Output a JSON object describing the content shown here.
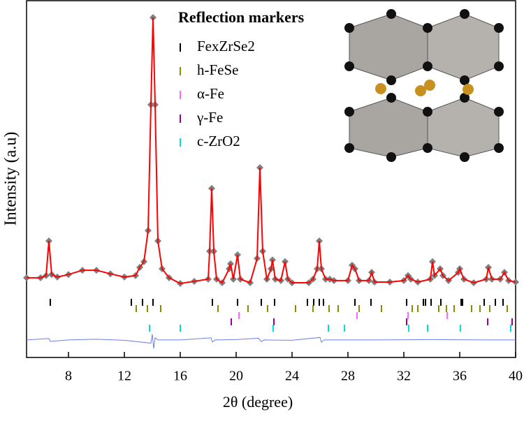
{
  "chart_data": {
    "type": "line",
    "xlabel": "2θ (degree)",
    "ylabel": "Intensity (a.u)",
    "xlim": [
      5,
      40
    ],
    "xticks": [
      8,
      12,
      16,
      20,
      24,
      28,
      32,
      36,
      40
    ],
    "ylim": [
      0,
      100
    ],
    "series": [
      {
        "style": "diamond",
        "color": "#7f7f7f",
        "x": [
          5,
          6,
          6.4,
          6.6,
          6.8,
          7.2,
          8,
          9,
          10,
          11,
          12,
          12.8,
          13.1,
          13.4,
          13.7,
          13.9,
          14.05,
          14.2,
          14.4,
          14.7,
          15.2,
          16,
          17,
          18,
          18.1,
          18.25,
          18.4,
          18.6,
          19,
          19.5,
          19.6,
          19.8,
          20.1,
          20.3,
          21,
          21.5,
          21.7,
          21.9,
          22.2,
          22.5,
          22.6,
          22.8,
          23.2,
          23.5,
          23.7,
          24,
          25.2,
          25.5,
          25.8,
          25.95,
          26.1,
          26.4,
          26.7,
          27,
          28,
          28.3,
          28.5,
          28.8,
          29.5,
          29.7,
          29.9,
          31,
          32,
          32.3,
          32.5,
          33,
          33.9,
          34.05,
          34.2,
          34.6,
          34.8,
          35.2,
          35.9,
          36,
          36.3,
          37,
          37.9,
          38.05,
          38.3,
          38.9,
          39.2,
          39.5,
          40
        ],
        "values": [
          22.3,
          22.3,
          22.9,
          32.6,
          23.2,
          22.5,
          23.2,
          24.4,
          24.4,
          23.4,
          22.5,
          22.9,
          25.2,
          26.8,
          35.5,
          70.7,
          95.1,
          70.7,
          32.6,
          24.8,
          22.3,
          20.7,
          21.3,
          21.9,
          29.7,
          47.3,
          29.7,
          21.9,
          20.9,
          24.8,
          26.2,
          21.9,
          28.7,
          21.9,
          20.9,
          27.7,
          53.1,
          29.7,
          21.9,
          24.8,
          27.3,
          21.9,
          21.5,
          26.8,
          21.9,
          20.9,
          20.9,
          21.9,
          24.8,
          32.6,
          24.8,
          21.9,
          21.9,
          21.5,
          21.5,
          25.8,
          24.8,
          21.5,
          21.5,
          23.8,
          21.1,
          21.1,
          21.5,
          22.9,
          21.9,
          21.1,
          21.9,
          26.8,
          22.9,
          24.8,
          22.9,
          21.5,
          23.8,
          24.8,
          21.9,
          20.9,
          21.9,
          25.2,
          21.9,
          21.9,
          23.8,
          21.5,
          21.1
        ]
      },
      {
        "style": "line",
        "color": "#ff0000",
        "x": [
          5,
          6,
          6.4,
          6.6,
          6.8,
          7.2,
          8,
          9,
          10,
          11,
          12,
          12.8,
          13.1,
          13.4,
          13.7,
          13.9,
          14.05,
          14.2,
          14.4,
          14.7,
          15.2,
          16,
          17,
          18,
          18.1,
          18.25,
          18.4,
          18.6,
          19,
          19.5,
          19.6,
          19.8,
          20.1,
          20.3,
          21,
          21.5,
          21.7,
          21.9,
          22.2,
          22.5,
          22.6,
          22.8,
          23.2,
          23.5,
          23.7,
          24,
          25.2,
          25.5,
          25.8,
          25.95,
          26.1,
          26.4,
          26.7,
          27,
          28,
          28.3,
          28.5,
          28.8,
          29.5,
          29.7,
          29.9,
          31,
          32,
          32.3,
          32.5,
          33,
          33.9,
          34.05,
          34.2,
          34.6,
          34.8,
          35.2,
          35.9,
          36,
          36.3,
          37,
          37.9,
          38.05,
          38.3,
          38.9,
          39.2,
          39.5,
          40
        ],
        "values": [
          22.3,
          22.3,
          22.9,
          32.6,
          23.2,
          22.5,
          23.2,
          24.4,
          24.4,
          23.4,
          22.5,
          22.9,
          25.2,
          26.8,
          35.5,
          70.7,
          95.1,
          70.7,
          32.6,
          24.8,
          22.3,
          20.7,
          21.3,
          21.9,
          29.7,
          47.3,
          29.7,
          21.9,
          20.9,
          24.8,
          26.2,
          21.9,
          28.7,
          21.9,
          20.9,
          27.7,
          53.1,
          29.7,
          21.9,
          24.8,
          27.3,
          21.9,
          21.5,
          26.8,
          21.9,
          20.9,
          20.9,
          21.9,
          24.8,
          32.6,
          24.8,
          21.9,
          21.9,
          21.5,
          21.5,
          25.8,
          24.8,
          21.5,
          21.5,
          23.8,
          21.1,
          21.1,
          21.5,
          22.9,
          21.9,
          21.1,
          21.9,
          26.8,
          22.9,
          24.8,
          22.9,
          21.5,
          23.8,
          24.8,
          21.9,
          20.9,
          21.9,
          25.2,
          21.9,
          21.9,
          23.8,
          21.5,
          21.1
        ]
      },
      {
        "style": "line",
        "color": "#6b7fe8",
        "x": [
          5,
          6.6,
          6.7,
          8,
          10,
          12,
          13.9,
          14,
          14.1,
          14.2,
          14.4,
          16,
          18.2,
          18.3,
          18.5,
          20,
          21.6,
          21.8,
          22,
          24,
          26,
          26.1,
          26.3,
          30,
          34,
          38,
          40
        ],
        "values": [
          4.9,
          5.3,
          4.5,
          4.9,
          5.1,
          4.8,
          4.0,
          6.5,
          2.5,
          5.5,
          4.9,
          4.9,
          5.5,
          4.3,
          4.9,
          5.0,
          5.4,
          4.4,
          4.9,
          4.8,
          5.6,
          4.3,
          4.9,
          4.9,
          5.0,
          4.9,
          4.9
        ]
      }
    ],
    "legend_title": "Reflection markers",
    "markers": [
      {
        "name": "FexZrSe2",
        "color": "#000000",
        "positions": [
          6.7,
          12.5,
          13.3,
          14.05,
          18.3,
          20.1,
          21.8,
          22.75,
          25.1,
          25.55,
          25.95,
          26.25,
          28.5,
          29.65,
          32.2,
          33.4,
          33.55,
          33.95,
          34.65,
          36.1,
          36.2,
          37.75,
          38.55,
          39.1
        ]
      },
      {
        "name": "h-FeSe",
        "color": "#8c8c00",
        "positions": [
          12.85,
          13.65,
          14.6,
          18.7,
          20.85,
          22.25,
          24.25,
          25.5,
          26.65,
          27.3,
          28.8,
          30.4,
          32.6,
          33,
          34.5,
          35.05,
          35.6,
          36.85,
          37.45,
          38.15,
          39.4
        ]
      },
      {
        "name": "α-Fe",
        "color": "#ff66ff",
        "positions": [
          20.2,
          28.65,
          32.3,
          35.1
        ]
      },
      {
        "name": "γ-Fe",
        "color": "#990099",
        "positions": [
          19.65,
          22.7,
          32.2,
          38.0,
          39.75
        ]
      },
      {
        "name": "c-ZrO2",
        "color": "#00dddd",
        "positions": [
          13.8,
          16.0,
          22.65,
          26.6,
          27.75,
          32.35,
          33.7,
          36.05,
          39.65
        ]
      }
    ]
  }
}
